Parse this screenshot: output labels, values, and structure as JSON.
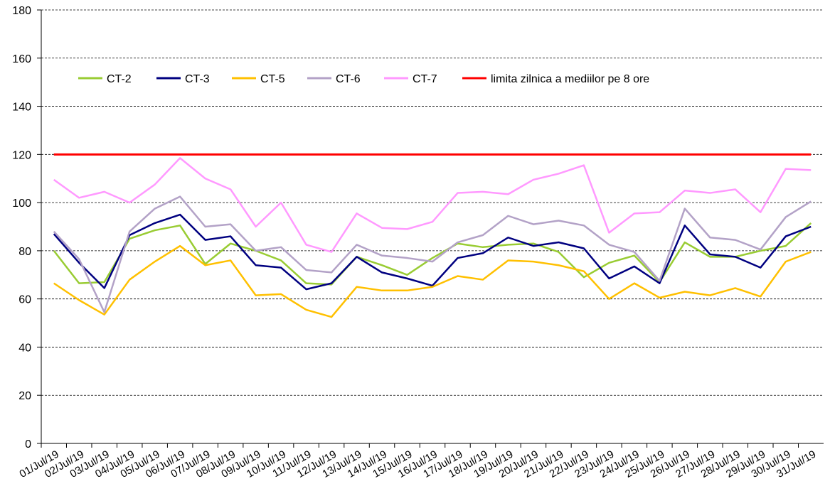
{
  "chart_data": {
    "type": "line",
    "categories": [
      "01/Jul/19",
      "02/Jul/19",
      "03/Jul/19",
      "04/Jul/19",
      "05/Jul/19",
      "06/Jul/19",
      "07/Jul/19",
      "08/Jul/19",
      "09/Jul/19",
      "10/Jul/19",
      "11/Jul/19",
      "12/Jul/19",
      "13/Jul/19",
      "14/Jul/19",
      "15/Jul/19",
      "16/Jul/19",
      "17/Jul/19",
      "18/Jul/19",
      "19/Jul/19",
      "20/Jul/19",
      "21/Jul/19",
      "22/Jul/19",
      "23/Jul/19",
      "24/Jul/19",
      "25/Jul/19",
      "26/Jul/19",
      "27/Jul/19",
      "28/Jul/19",
      "29/Jul/19",
      "30/Jul/19",
      "31/Jul/19"
    ],
    "series": [
      {
        "name": "CT-2",
        "color": "#99cc33",
        "values": [
          80,
          66.5,
          67,
          85,
          88.5,
          90.5,
          74.5,
          83,
          80,
          76,
          66.5,
          66,
          77.5,
          74,
          70,
          77,
          83,
          81.5,
          82.5,
          83,
          79.5,
          69,
          75,
          78,
          67,
          83.5,
          77.5,
          77.5,
          80,
          82,
          91.5
        ]
      },
      {
        "name": "CT-3",
        "color": "#000080",
        "values": [
          87,
          75,
          64.5,
          86.5,
          91.5,
          95,
          84.5,
          86,
          74,
          73,
          64,
          66.5,
          77.5,
          71,
          68.5,
          65.5,
          77,
          79,
          85.5,
          82,
          83.5,
          81,
          68.5,
          73.5,
          66.5,
          90.5,
          78.5,
          77.5,
          73,
          86,
          90
        ]
      },
      {
        "name": "CT-5",
        "color": "#ffc000",
        "values": [
          66.5,
          59.5,
          53.5,
          68,
          75.5,
          82,
          74,
          76,
          61.5,
          62,
          55.5,
          52.5,
          65,
          63.5,
          63.5,
          65,
          69.5,
          68,
          76,
          75.5,
          74,
          71.5,
          60,
          66.5,
          60.5,
          63,
          61.5,
          64.5,
          61,
          75.5,
          79.5
        ]
      },
      {
        "name": "CT-6",
        "color": "#b3a2c7",
        "values": [
          88,
          76.5,
          54.5,
          88,
          97.5,
          102.5,
          90,
          91,
          80,
          81.5,
          72,
          71,
          82.5,
          78,
          77,
          75.5,
          83.5,
          86.5,
          94.5,
          91,
          92.5,
          90.5,
          82.5,
          79.5,
          67.5,
          97.5,
          85.5,
          84.5,
          80.5,
          94,
          100.5
        ]
      },
      {
        "name": "CT-7",
        "color": "#ff99ff",
        "values": [
          109.5,
          102,
          104.5,
          100,
          107.5,
          118.5,
          110,
          105.5,
          90,
          100,
          82.5,
          79.5,
          95.5,
          89.5,
          89,
          92,
          104,
          104.5,
          103.5,
          109.5,
          112,
          115.5,
          87.5,
          95.5,
          96,
          105,
          104,
          105.5,
          96,
          114,
          113.5
        ]
      },
      {
        "name": "limita zilnica a mediilor pe 8 ore",
        "color": "#ff0000",
        "values": [
          120,
          120,
          120,
          120,
          120,
          120,
          120,
          120,
          120,
          120,
          120,
          120,
          120,
          120,
          120,
          120,
          120,
          120,
          120,
          120,
          120,
          120,
          120,
          120,
          120,
          120,
          120,
          120,
          120,
          120,
          120
        ]
      }
    ],
    "ylim": [
      0,
      180
    ],
    "yticks": [
      0,
      20,
      40,
      60,
      80,
      100,
      120,
      140,
      160,
      180
    ],
    "grid": true,
    "legend": "top"
  }
}
